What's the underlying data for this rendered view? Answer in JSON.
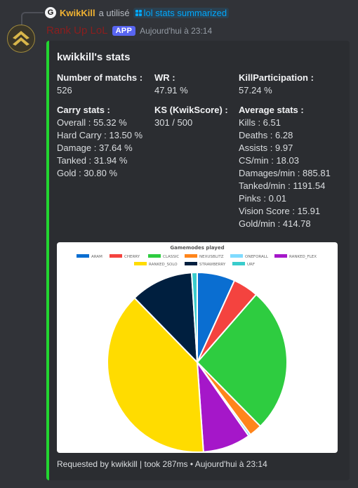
{
  "reply": {
    "avatar_letter": "G",
    "username": "KwikKill",
    "action": "a utilisé",
    "command": "lol stats summarized"
  },
  "message": {
    "bot_name": "Rank Up LoL",
    "badge": "APP",
    "timestamp": "Aujourd'hui à 23:14"
  },
  "embed": {
    "accent_color": "#22d630",
    "title": "kwikkill's stats",
    "fields": {
      "matches_name": "Number of matchs :",
      "matches_value": "526",
      "wr_name": "WR :",
      "wr_value": "47.91 %",
      "kp_name": "KillParticipation :",
      "kp_value": "57.24 %",
      "carry_name": "Carry stats :",
      "carry_lines": [
        "Overall : 55.32 %",
        "Hard Carry : 13.50 %",
        "Damage : 37.64 %",
        "Tanked : 31.94 %",
        "Gold : 30.80 %"
      ],
      "ks_name": "KS (KwikScore) :",
      "ks_value": "301 / 500",
      "avg_name": "Average stats :",
      "avg_lines": [
        "Kills : 6.51",
        "Deaths : 6.28",
        "Assists : 9.97",
        "CS/min : 18.03",
        "Damages/min : 885.81",
        "Tanked/min : 1191.54",
        "Pinks : 0.01",
        "Vision Score : 15.91",
        "Gold/min : 414.78"
      ]
    },
    "footer": "Requested by kwikkill | took 287ms • Aujourd'hui à 23:14"
  },
  "chart_data": {
    "type": "pie",
    "title": "Gamemodes played",
    "legend_position": "top",
    "categories": [
      "ARAM",
      "CHERRY",
      "CLASSIC",
      "NEXUSBLITZ",
      "ONEFORALL",
      "RANKED_FLEX",
      "RANKED_SOLO",
      "STRAWBERRY",
      "URF"
    ],
    "values": [
      6.8,
      4.6,
      26.2,
      2.3,
      0.4,
      8.6,
      38.8,
      11.3,
      1.0
    ],
    "colors": [
      "#0a6ed1",
      "#f4433f",
      "#2ecc40",
      "#ff851b",
      "#7fdbff",
      "#a517c9",
      "#ffdc00",
      "#001f3f",
      "#39cccc"
    ]
  }
}
